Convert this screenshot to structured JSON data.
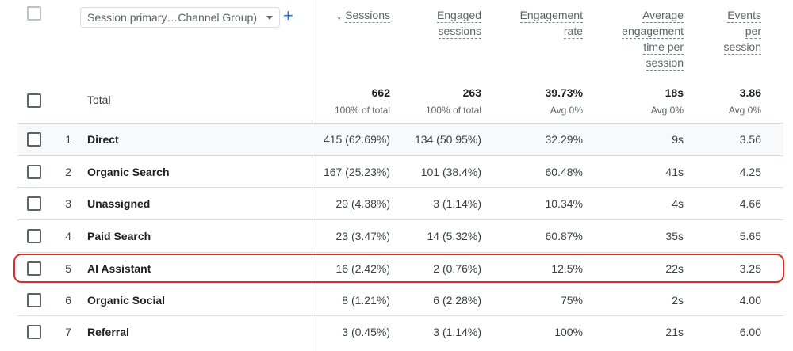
{
  "header": {
    "dimension_selector": "Session primary…Channel Group)",
    "add_dimension": "+",
    "metrics": [
      {
        "key": "sessions",
        "lines": [
          "Sessions"
        ],
        "sorted": true
      },
      {
        "key": "engaged",
        "lines": [
          "Engaged",
          "sessions"
        ]
      },
      {
        "key": "rate",
        "lines": [
          "Engagement",
          "rate"
        ]
      },
      {
        "key": "avgtime",
        "lines": [
          "Average",
          "engagement",
          "time per",
          "session"
        ]
      },
      {
        "key": "events",
        "lines": [
          "Events",
          "per",
          "session"
        ]
      }
    ],
    "sort_icon": "arrow-down-icon"
  },
  "total": {
    "label": "Total",
    "sessions": "662",
    "sessions_sub": "100% of total",
    "engaged": "263",
    "engaged_sub": "100% of total",
    "rate": "39.73%",
    "rate_sub": "Avg 0%",
    "avgtime": "18s",
    "avgtime_sub": "Avg 0%",
    "events": "3.86",
    "events_sub": "Avg 0%"
  },
  "rows": [
    {
      "num": "1",
      "name": "Direct",
      "sessions": "415 (62.69%)",
      "engaged": "134 (50.95%)",
      "rate": "32.29%",
      "avgtime": "9s",
      "events": "3.56"
    },
    {
      "num": "2",
      "name": "Organic Search",
      "sessions": "167 (25.23%)",
      "engaged": "101 (38.4%)",
      "rate": "60.48%",
      "avgtime": "41s",
      "events": "4.25"
    },
    {
      "num": "3",
      "name": "Unassigned",
      "sessions": "29 (4.38%)",
      "engaged": "3 (1.14%)",
      "rate": "10.34%",
      "avgtime": "4s",
      "events": "4.66"
    },
    {
      "num": "4",
      "name": "Paid Search",
      "sessions": "23 (3.47%)",
      "engaged": "14 (5.32%)",
      "rate": "60.87%",
      "avgtime": "35s",
      "events": "5.65"
    },
    {
      "num": "5",
      "name": "AI Assistant",
      "sessions": "16 (2.42%)",
      "engaged": "2 (0.76%)",
      "rate": "12.5%",
      "avgtime": "22s",
      "events": "3.25",
      "highlighted": true
    },
    {
      "num": "6",
      "name": "Organic Social",
      "sessions": "8 (1.21%)",
      "engaged": "6 (2.28%)",
      "rate": "75%",
      "avgtime": "2s",
      "events": "4.00"
    },
    {
      "num": "7",
      "name": "Referral",
      "sessions": "3 (0.45%)",
      "engaged": "3 (1.14%)",
      "rate": "100%",
      "avgtime": "21s",
      "events": "6.00"
    }
  ],
  "colors": {
    "accent": "#1a73e8",
    "highlight": "#d93025",
    "border": "#dadce0"
  }
}
